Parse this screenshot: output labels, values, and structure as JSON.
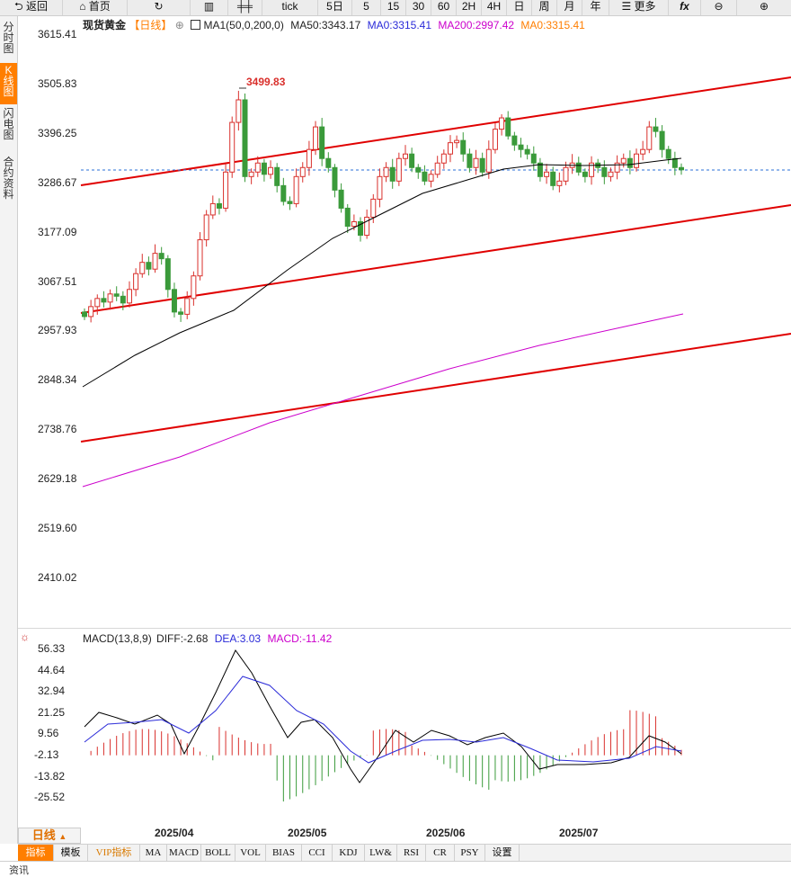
{
  "toolbar": {
    "back": "返回",
    "home": "首页",
    "tick": "tick",
    "periods": [
      "5日",
      "5",
      "15",
      "30",
      "60",
      "2H",
      "4H",
      "日",
      "周",
      "月",
      "年"
    ],
    "more": "更多"
  },
  "side_tabs": [
    {
      "label": "分时图",
      "active": false
    },
    {
      "label": "K线图",
      "active": true
    },
    {
      "label": "闪电图",
      "active": false
    },
    {
      "label": "合约资料",
      "active": false
    }
  ],
  "header": {
    "symbol": "现货黄金",
    "period_tag": "【日线】",
    "ma1": "MA1(50,0,200,0)",
    "ma50": "MA50:3343.17",
    "ma0": "MA0:3315.41",
    "ma200": "MA200:2997.42",
    "ma0b": "MA0:3315.41"
  },
  "colors": {
    "up": "#d9302c",
    "down": "#3a9a3a",
    "ma50": "#000000",
    "ma200": "#cc00cc",
    "channel": "#e00000",
    "diff": "#000000",
    "dea": "#2a2ad8",
    "accent": "#ff7e00"
  },
  "price_axis": [
    "3615.41",
    "3505.83",
    "3396.25",
    "3286.67",
    "3177.09",
    "3067.51",
    "2957.93",
    "2848.34",
    "2738.76",
    "2629.18",
    "2519.60",
    "2410.02"
  ],
  "peak_label": "3499.83",
  "last_price": "3315.41",
  "macd": {
    "title": "MACD(13,8,9)",
    "diff": "DIFF:-2.68",
    "dea": "DEA:3.03",
    "macd": "MACD:-11.42",
    "axis": [
      "56.33",
      "44.64",
      "32.94",
      "21.25",
      "9.56",
      "-2.13",
      "-13.82",
      "-25.52"
    ]
  },
  "dates": [
    "2025/04",
    "2025/05",
    "2025/06",
    "2025/07"
  ],
  "period_button": "日线",
  "indicator_tabs": [
    "指标",
    "模板",
    "VIP指标",
    "MA",
    "MACD",
    "BOLL",
    "VOL",
    "BIAS",
    "CCI",
    "KDJ",
    "LW&",
    "RSI",
    "CR",
    "PSY",
    "设置"
  ],
  "footer": "资讯"
}
